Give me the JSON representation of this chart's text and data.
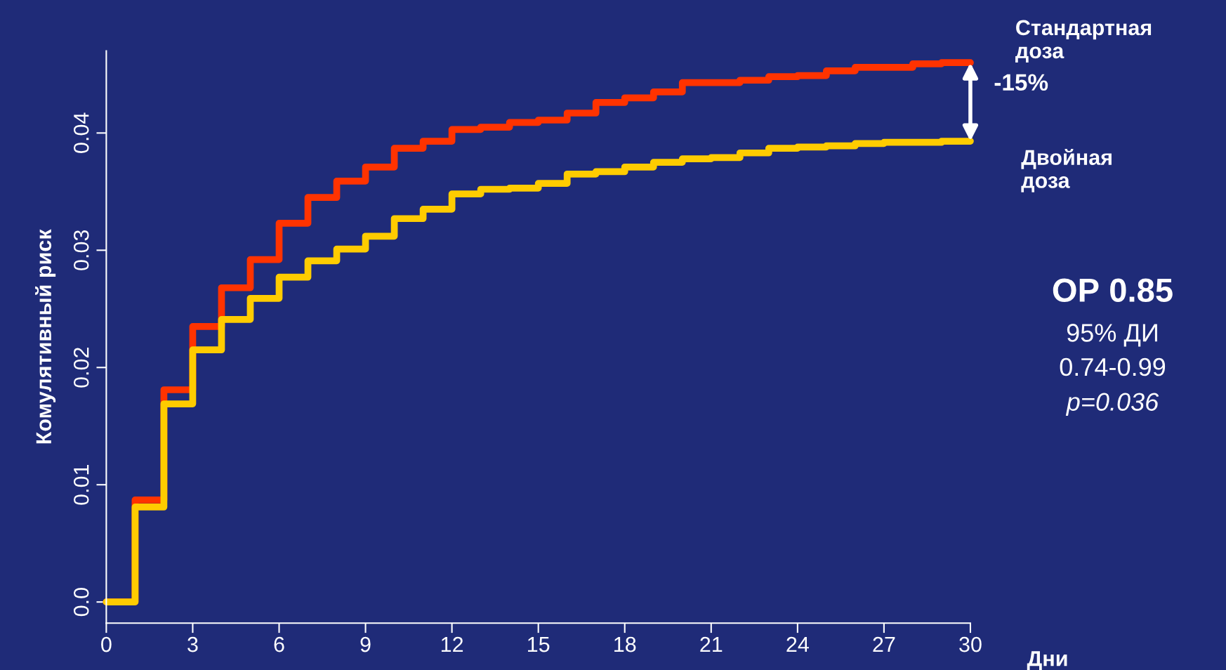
{
  "chart_data": {
    "type": "step",
    "xlabel": "Дни",
    "ylabel": "Комулятивный риск",
    "x": [
      0,
      1,
      2,
      3,
      4,
      5,
      6,
      7,
      8,
      9,
      10,
      11,
      12,
      13,
      14,
      15,
      16,
      17,
      18,
      19,
      20,
      21,
      22,
      23,
      24,
      25,
      26,
      27,
      28,
      29,
      30
    ],
    "series": [
      {
        "name": "Стандартная доза",
        "color": "#ff3300",
        "values": [
          0,
          0.0087,
          0.0181,
          0.0235,
          0.0268,
          0.0292,
          0.0323,
          0.0345,
          0.0359,
          0.0371,
          0.0387,
          0.0393,
          0.0403,
          0.0405,
          0.0409,
          0.0411,
          0.0417,
          0.0426,
          0.043,
          0.0435,
          0.0443,
          0.0443,
          0.0445,
          0.0448,
          0.0449,
          0.0453,
          0.0456,
          0.0456,
          0.0459,
          0.046,
          0.046
        ]
      },
      {
        "name": "Двойная доза",
        "color": "#ffcc00",
        "values": [
          0,
          0.0081,
          0.0169,
          0.0215,
          0.0241,
          0.0259,
          0.0277,
          0.0291,
          0.0301,
          0.0312,
          0.0327,
          0.0335,
          0.0348,
          0.0352,
          0.0353,
          0.0357,
          0.0365,
          0.0367,
          0.0371,
          0.0375,
          0.0378,
          0.0379,
          0.0383,
          0.0387,
          0.0388,
          0.0389,
          0.0391,
          0.0392,
          0.0392,
          0.0393,
          0.0393
        ]
      }
    ],
    "xlim": [
      0,
      30
    ],
    "xticks": [
      0,
      3,
      6,
      9,
      12,
      15,
      18,
      21,
      24,
      27,
      30
    ],
    "ylim": [
      -0.0018,
      0.047
    ],
    "yticks": [
      {
        "value": 0,
        "label": "0.0"
      },
      0.01,
      0.02,
      0.03,
      0.04
    ],
    "grid": false,
    "legend": false,
    "line_style": "solid",
    "marker": "none",
    "annotations": [
      "-15%",
      "ОР 0.85",
      "95% ДИ",
      "0.74-0.99",
      "p=0.036"
    ]
  }
}
